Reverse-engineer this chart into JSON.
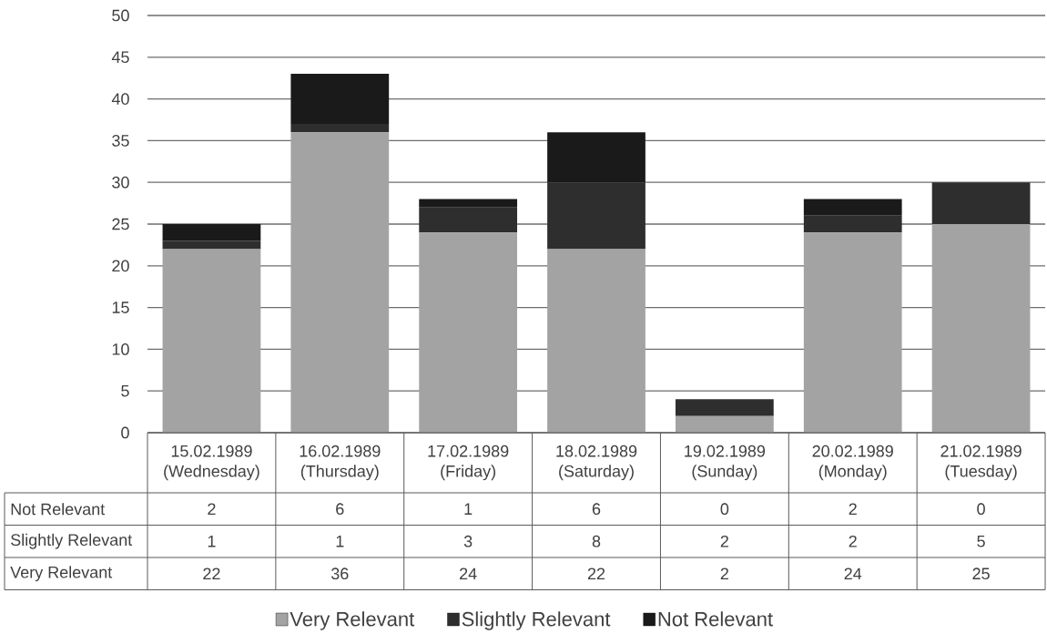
{
  "chart_data": {
    "type": "bar",
    "stacked": true,
    "categories": [
      "15.02.1989 (Wednesday)",
      "16.02.1989 (Thursday)",
      "17.02.1989 (Friday)",
      "18.02.1989 (Saturday)",
      "19.02.1989 (Sunday)",
      "20.02.1989 (Monday)",
      "21.02.1989 (Tuesday)"
    ],
    "series": [
      {
        "name": "Very Relevant",
        "color": "#a3a3a3",
        "values": [
          22,
          36,
          24,
          22,
          2,
          24,
          25
        ]
      },
      {
        "name": "Slightly Relevant",
        "color": "#2e2e2e",
        "values": [
          1,
          1,
          3,
          8,
          2,
          2,
          5
        ]
      },
      {
        "name": "Not Relevant",
        "color": "#1a1a1a",
        "values": [
          2,
          6,
          1,
          6,
          0,
          2,
          0
        ]
      }
    ],
    "ylim": [
      0,
      50
    ],
    "yticks": [
      0,
      5,
      10,
      15,
      20,
      25,
      30,
      35,
      40,
      45,
      50
    ],
    "grid": "y",
    "legend": "bottom",
    "data_labels": true
  }
}
